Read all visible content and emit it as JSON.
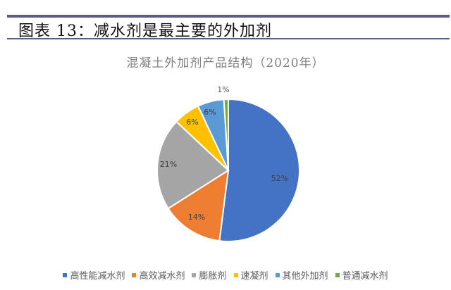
{
  "figure": {
    "title": "图表 13：减水剂是最主要的外加剂"
  },
  "chart_data": {
    "type": "pie",
    "title": "混凝土外加剂产品结构（2020年）",
    "categories": [
      "高性能减水剂",
      "高效减水剂",
      "膨胀剂",
      "速凝剂",
      "其他外加剂",
      "普通减水剂"
    ],
    "values": [
      52,
      14,
      21,
      6,
      6,
      1
    ],
    "labels": [
      "52%",
      "14%",
      "21%",
      "6%",
      "6%",
      "1%"
    ],
    "colors": [
      "#4472c4",
      "#ed7d31",
      "#a5a5a5",
      "#ffc000",
      "#5b9bd5",
      "#70ad47"
    ],
    "legend_position": "bottom",
    "start_angle_deg": 0,
    "direction": "clockwise"
  }
}
